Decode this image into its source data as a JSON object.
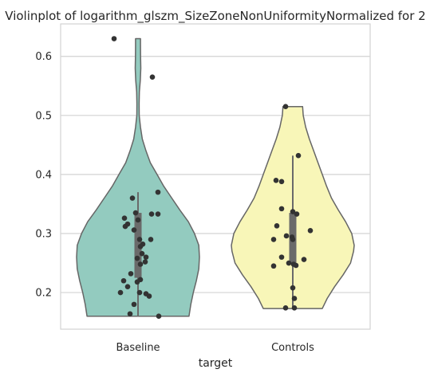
{
  "chart_data": {
    "type": "violin",
    "title": "Violinplot of logarithm_glszm_SizeZoneNonUniformityNormalized for 2",
    "xlabel": "target",
    "ylabel": "",
    "categories": [
      "Baseline",
      "Controls"
    ],
    "ylim": [
      0.138,
      0.655
    ],
    "yticks": [
      0.2,
      0.3,
      0.4,
      0.5,
      0.6
    ],
    "ytick_labels": [
      "0.2",
      "0.3",
      "0.4",
      "0.5",
      "0.6"
    ],
    "grid": "horizontal",
    "colors": {
      "Baseline": "#93cbbf",
      "Controls": "#f8f6b8",
      "edge": "#666666",
      "points": "#333333",
      "box": "#6a6a6a",
      "grid": "#d3d3d3"
    },
    "series": [
      {
        "category": "Baseline",
        "min": 0.16,
        "max": 0.63,
        "q1": 0.225,
        "median": 0.275,
        "q3": 0.335,
        "whisker_low": 0.16,
        "whisker_high": 0.37,
        "density": [
          [
            0.16,
            0.83
          ],
          [
            0.18,
            0.86
          ],
          [
            0.2,
            0.9
          ],
          [
            0.22,
            0.95
          ],
          [
            0.24,
            0.99
          ],
          [
            0.26,
            1.0
          ],
          [
            0.28,
            0.99
          ],
          [
            0.3,
            0.92
          ],
          [
            0.32,
            0.82
          ],
          [
            0.34,
            0.68
          ],
          [
            0.36,
            0.55
          ],
          [
            0.38,
            0.42
          ],
          [
            0.4,
            0.31
          ],
          [
            0.42,
            0.2
          ],
          [
            0.44,
            0.13
          ],
          [
            0.46,
            0.07
          ],
          [
            0.48,
            0.04
          ],
          [
            0.5,
            0.02
          ],
          [
            0.52,
            0.018
          ],
          [
            0.54,
            0.022
          ],
          [
            0.56,
            0.038
          ],
          [
            0.58,
            0.045
          ],
          [
            0.6,
            0.042
          ],
          [
            0.62,
            0.04
          ],
          [
            0.63,
            0.04
          ]
        ],
        "points": [
          [
            -0.3,
            0.63
          ],
          [
            0.18,
            0.565
          ],
          [
            0.25,
            0.37
          ],
          [
            -0.07,
            0.36
          ],
          [
            -0.03,
            0.335
          ],
          [
            0.17,
            0.333
          ],
          [
            0.25,
            0.333
          ],
          [
            -0.17,
            0.326
          ],
          [
            0.0,
            0.323
          ],
          [
            -0.13,
            0.316
          ],
          [
            -0.16,
            0.312
          ],
          [
            -0.05,
            0.306
          ],
          [
            0.02,
            0.29
          ],
          [
            0.16,
            0.29
          ],
          [
            0.06,
            0.282
          ],
          [
            0.03,
            0.278
          ],
          [
            0.05,
            0.266
          ],
          [
            0.1,
            0.26
          ],
          [
            -0.01,
            0.258
          ],
          [
            0.09,
            0.252
          ],
          [
            0.03,
            0.248
          ],
          [
            -0.09,
            0.232
          ],
          [
            0.03,
            0.222
          ],
          [
            -0.01,
            0.218
          ],
          [
            -0.18,
            0.22
          ],
          [
            -0.13,
            0.21
          ],
          [
            0.02,
            0.2
          ],
          [
            -0.22,
            0.2
          ],
          [
            0.1,
            0.198
          ],
          [
            0.14,
            0.194
          ],
          [
            -0.05,
            0.18
          ],
          [
            -0.1,
            0.164
          ],
          [
            0.26,
            0.16
          ]
        ]
      },
      {
        "category": "Controls",
        "min": 0.173,
        "max": 0.515,
        "q1": 0.25,
        "median": 0.295,
        "q3": 0.335,
        "whisker_low": 0.173,
        "whisker_high": 0.432,
        "density": [
          [
            0.173,
            0.48
          ],
          [
            0.19,
            0.56
          ],
          [
            0.21,
            0.68
          ],
          [
            0.23,
            0.82
          ],
          [
            0.25,
            0.94
          ],
          [
            0.27,
            0.99
          ],
          [
            0.28,
            1.0
          ],
          [
            0.3,
            0.96
          ],
          [
            0.32,
            0.86
          ],
          [
            0.34,
            0.74
          ],
          [
            0.36,
            0.63
          ],
          [
            0.38,
            0.55
          ],
          [
            0.4,
            0.48
          ],
          [
            0.42,
            0.41
          ],
          [
            0.44,
            0.34
          ],
          [
            0.46,
            0.27
          ],
          [
            0.48,
            0.21
          ],
          [
            0.5,
            0.17
          ],
          [
            0.515,
            0.16
          ]
        ],
        "points": [
          [
            -0.09,
            0.515
          ],
          [
            0.07,
            0.432
          ],
          [
            -0.21,
            0.39
          ],
          [
            -0.14,
            0.388
          ],
          [
            -0.14,
            0.342
          ],
          [
            0.0,
            0.337
          ],
          [
            0.05,
            0.333
          ],
          [
            -0.2,
            0.313
          ],
          [
            0.22,
            0.305
          ],
          [
            -0.08,
            0.296
          ],
          [
            -0.01,
            0.294
          ],
          [
            0.0,
            0.29
          ],
          [
            -0.24,
            0.29
          ],
          [
            -0.14,
            0.26
          ],
          [
            0.14,
            0.256
          ],
          [
            -0.05,
            0.25
          ],
          [
            0.01,
            0.248
          ],
          [
            0.04,
            0.246
          ],
          [
            -0.24,
            0.245
          ],
          [
            0.0,
            0.208
          ],
          [
            0.02,
            0.19
          ],
          [
            -0.09,
            0.174
          ],
          [
            0.02,
            0.174
          ]
        ]
      }
    ]
  }
}
